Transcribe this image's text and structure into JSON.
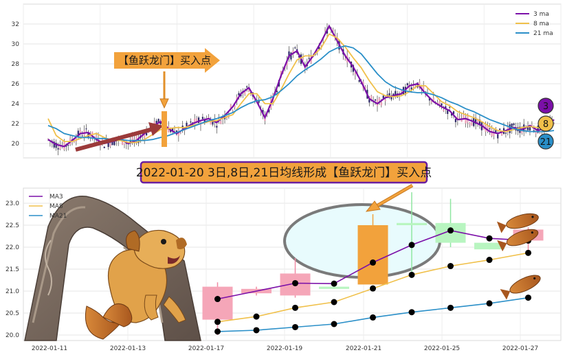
{
  "colors": {
    "ma3": "#7b0fa8",
    "ma8": "#f0c04a",
    "ma21": "#2a8fc8",
    "up": "#f5a6b8",
    "down": "#b8f5c0",
    "annotation_orange": "#f2a23c",
    "arrow_red": "#9b3a3a",
    "ellipse_fill": "#e8fbfd",
    "ellipse_stroke": "#7a7a7a"
  },
  "top_chart": {
    "legend": [
      "3 ma",
      "8 ma",
      "21 ma"
    ],
    "y_ticks": [
      "20",
      "22",
      "24",
      "26",
      "28",
      "30",
      "32"
    ],
    "callout": "【鱼跃龙门】买入点",
    "circles": [
      "3",
      "8",
      "21"
    ]
  },
  "banner": "2022-01-20 3日,8日,21日均线形成【鱼跃龙门】买入点",
  "chart_data": [
    {
      "type": "line",
      "title": "",
      "legend": [
        "3 ma",
        "8 ma",
        "21 ma"
      ],
      "ylim": [
        19,
        33
      ],
      "series": [
        {
          "name": "3 ma",
          "values": [
            20.4,
            19.9,
            19.7,
            20.3,
            21.0,
            21.1,
            20.4,
            20.0,
            20.2,
            20.4,
            20.0,
            20.3,
            21.0,
            21.7,
            22.2,
            21.5,
            21.0,
            21.5,
            22.0,
            22.3,
            22.5,
            22.1,
            22.8,
            23.7,
            25.0,
            25.6,
            24.2,
            22.6,
            24.5,
            26.8,
            28.8,
            29.3,
            27.7,
            28.8,
            30.2,
            31.8,
            30.3,
            28.8,
            27.7,
            26.2,
            24.5,
            24.0,
            24.6,
            24.8,
            25.0,
            25.8,
            26.0,
            25.0,
            24.2,
            23.7,
            23.3,
            22.4,
            22.5,
            22.2,
            21.8,
            21.2,
            21.0,
            21.3,
            21.6,
            21.4,
            21.8,
            21.3,
            21.6,
            22.4
          ]
        },
        {
          "name": "8 ma",
          "values": [
            22.5,
            20.8,
            20.2,
            20.2,
            20.5,
            20.8,
            21.0,
            20.6,
            20.3,
            20.3,
            20.1,
            20.1,
            20.4,
            20.9,
            21.4,
            21.5,
            21.6,
            21.6,
            21.8,
            22.0,
            22.2,
            22.3,
            22.6,
            22.9,
            24.0,
            25.0,
            25.0,
            24.0,
            24.0,
            25.4,
            27.0,
            28.4,
            28.8,
            28.8,
            29.6,
            31.0,
            30.6,
            29.7,
            28.6,
            27.6,
            26.3,
            25.2,
            24.8,
            24.7,
            24.8,
            25.2,
            25.8,
            25.8,
            25.0,
            24.2,
            23.8,
            23.2,
            22.9,
            22.6,
            22.2,
            21.7,
            21.3,
            21.2,
            21.4,
            21.6,
            21.7,
            21.6,
            21.6,
            21.9
          ]
        },
        {
          "name": "21 ma",
          "values": [
            21.8,
            21.5,
            21.0,
            20.8,
            20.6,
            20.6,
            20.5,
            20.5,
            20.4,
            20.4,
            20.3,
            20.3,
            20.3,
            20.4,
            20.6,
            20.8,
            21.1,
            21.4,
            21.7,
            22.0,
            22.3,
            22.5,
            22.8,
            23.1,
            23.6,
            24.0,
            24.3,
            24.4,
            24.7,
            25.3,
            26.0,
            26.8,
            27.4,
            27.9,
            28.5,
            29.2,
            29.6,
            29.8,
            29.6,
            29.0,
            28.0,
            27.0,
            26.2,
            25.7,
            25.4,
            25.2,
            25.1,
            25.1,
            24.9,
            24.6,
            24.2,
            23.9,
            23.5,
            23.2,
            22.8,
            22.4,
            22.1,
            21.8,
            21.5,
            21.3,
            21.2,
            21.2,
            21.2,
            21.3
          ]
        }
      ]
    },
    {
      "type": "bar",
      "title": "",
      "legend": [
        "MA3",
        "MA8",
        "MA21"
      ],
      "x_ticks": [
        "2022-01-11",
        "2022-01-13",
        "2022-01-17",
        "2022-01-19",
        "2022-01-21",
        "2022-01-25",
        "2022-01-27"
      ],
      "y_ticks": [
        "20.0",
        "20.5",
        "21.0",
        "21.5",
        "22.0",
        "22.5",
        "23.0"
      ],
      "ylim": [
        19.93,
        23.1
      ],
      "candles": [
        {
          "x": 5.0,
          "open": 20.35,
          "high": 21.2,
          "low": 20.0,
          "close": 21.1
        },
        {
          "x": 6.0,
          "open": 20.95,
          "high": 21.1,
          "low": 20.9,
          "close": 21.05
        },
        {
          "x": 7.0,
          "open": 20.9,
          "high": 21.75,
          "low": 20.85,
          "close": 21.4
        },
        {
          "x": 8.0,
          "open": 21.1,
          "high": 21.1,
          "low": 21.05,
          "close": 21.05
        },
        {
          "x": 9.0,
          "open": 21.15,
          "high": 22.75,
          "low": 21.15,
          "close": 22.5
        },
        {
          "x": 10.0,
          "open": 22.55,
          "high": 23.25,
          "low": 21.3,
          "close": 22.5
        },
        {
          "x": 11.0,
          "open": 22.55,
          "high": 23.1,
          "low": 22.0,
          "close": 22.1
        },
        {
          "x": 12.0,
          "open": 22.1,
          "high": 22.1,
          "low": 21.95,
          "close": 21.95
        },
        {
          "x": 13.0,
          "open": 22.15,
          "high": 22.45,
          "low": 21.85,
          "close": 22.4
        }
      ],
      "series": [
        {
          "name": "MA3",
          "x": [
            5.0,
            7.0,
            8.0,
            9.0,
            10.0,
            11.0,
            12.0,
            13.0
          ],
          "values": [
            20.82,
            21.18,
            21.17,
            21.65,
            22.05,
            22.38,
            22.2,
            22.15
          ]
        },
        {
          "name": "MA8",
          "x": [
            5.0,
            6.0,
            7.0,
            8.0,
            9.0,
            10.0,
            11.0,
            12.0,
            13.0
          ],
          "values": [
            20.3,
            20.42,
            20.62,
            20.75,
            21.06,
            21.37,
            21.57,
            21.71,
            21.87
          ]
        },
        {
          "name": "MA21",
          "x": [
            5.0,
            6.0,
            7.0,
            8.0,
            9.0,
            10.0,
            11.0,
            12.0,
            13.0
          ],
          "values": [
            20.08,
            20.11,
            20.18,
            20.25,
            20.4,
            20.52,
            20.62,
            20.72,
            20.85
          ]
        }
      ]
    }
  ]
}
